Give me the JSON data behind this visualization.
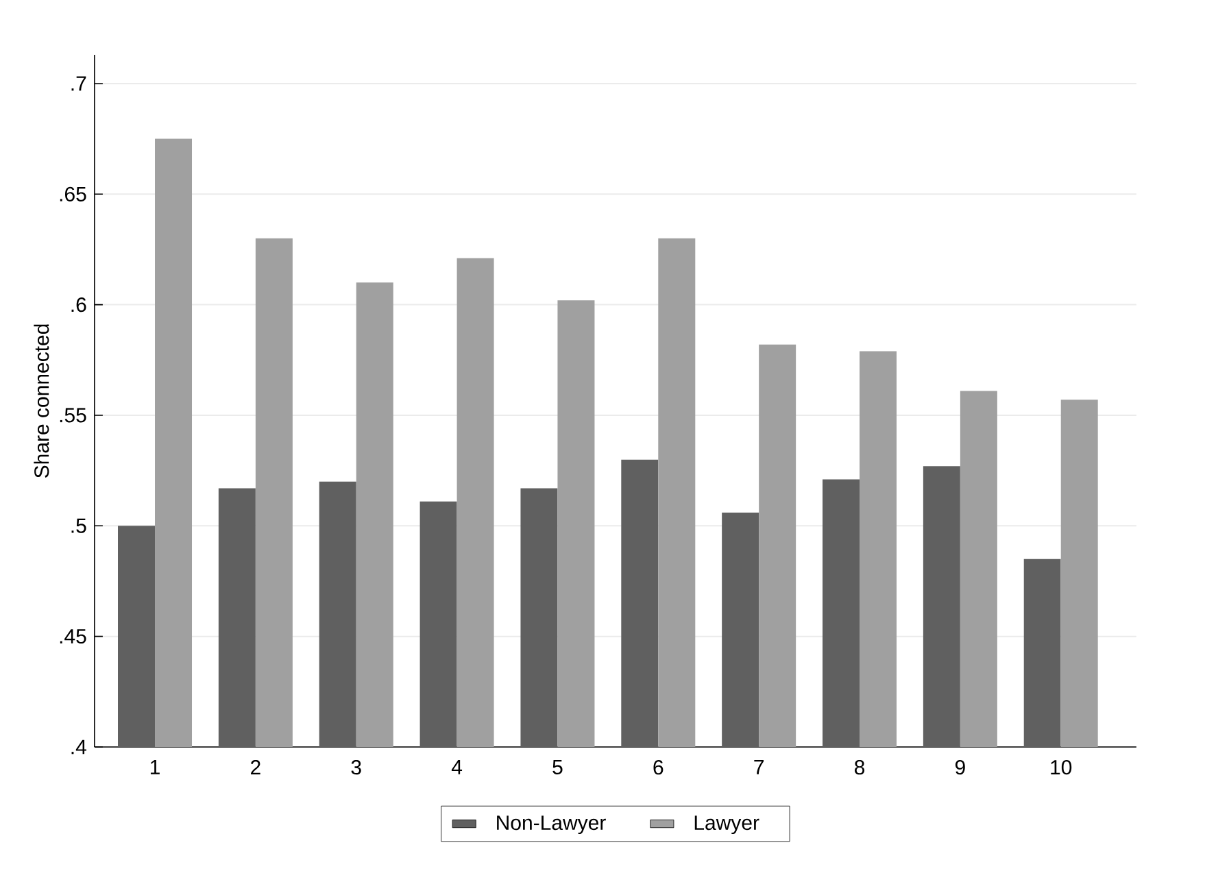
{
  "chart_data": {
    "type": "bar",
    "ylabel": "Share connected",
    "categories": [
      "1",
      "2",
      "3",
      "4",
      "5",
      "6",
      "7",
      "8",
      "9",
      "10"
    ],
    "series": [
      {
        "name": "Non-Lawyer",
        "color": "#606060",
        "values": [
          0.5,
          0.517,
          0.52,
          0.511,
          0.517,
          0.53,
          0.506,
          0.521,
          0.527,
          0.485
        ]
      },
      {
        "name": "Lawyer",
        "color": "#a0a0a0",
        "values": [
          0.675,
          0.63,
          0.61,
          0.621,
          0.602,
          0.63,
          0.582,
          0.579,
          0.561,
          0.557
        ]
      }
    ],
    "ylim": [
      0.4,
      0.713
    ],
    "yticks": [
      {
        "value": 0.4,
        "label": ".4"
      },
      {
        "value": 0.45,
        "label": ".45"
      },
      {
        "value": 0.5,
        "label": ".5"
      },
      {
        "value": 0.55,
        "label": ".55"
      },
      {
        "value": 0.6,
        "label": ".6"
      },
      {
        "value": 0.65,
        "label": ".65"
      },
      {
        "value": 0.7,
        "label": ".7"
      }
    ],
    "grid": "y",
    "legend": "bottom"
  }
}
